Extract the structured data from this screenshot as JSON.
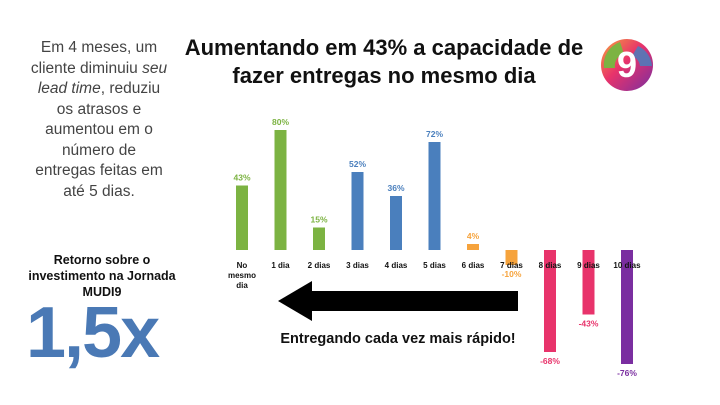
{
  "sidebar": {
    "line1": "Em 4 meses, um cliente diminuiu",
    "line2_italic": "seu lead time",
    "line2_rest": ",",
    "line3": "reduziu os atrasos e aumentou em o número de entregas feitas em até 5 dias."
  },
  "roi": {
    "label": "Retorno sobre o investimento na Jornada MUDI9",
    "value": "1,5x"
  },
  "header": {
    "title": "Aumentando em 43% a capacidade de fazer entregas no mesmo dia"
  },
  "logo": {
    "icon": "mudi9-logo-icon",
    "glyph": "9"
  },
  "arrow": {
    "caption": "Entregando cada vez mais rápido!"
  },
  "chart_data": {
    "type": "bar",
    "categories": [
      "No mesmo dia",
      "1 dia",
      "2 dias",
      "3 dias",
      "4 dias",
      "5 dias",
      "6 dias",
      "7 dias",
      "8 dias",
      "9 dias",
      "10 dias"
    ],
    "values": [
      43,
      80,
      15,
      52,
      36,
      72,
      4,
      -10,
      -68,
      -43,
      -76
    ],
    "value_labels": [
      "43%",
      "80%",
      "15%",
      "52%",
      "36%",
      "72%",
      "4%",
      "-10%",
      "-68%",
      "-43%",
      "-76%"
    ],
    "colors": [
      "#7cb342",
      "#7cb342",
      "#7cb342",
      "#4a7fbd",
      "#4a7fbd",
      "#4a7fbd",
      "#f6a33c",
      "#f6a33c",
      "#e8336b",
      "#e8336b",
      "#7a2ea0"
    ],
    "title": "",
    "xlabel": "",
    "ylabel": "",
    "grid": false,
    "legend": "none"
  }
}
